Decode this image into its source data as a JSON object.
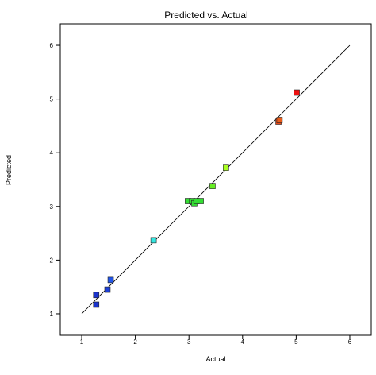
{
  "chart_data": {
    "type": "scatter",
    "title": "Predicted vs. Actual",
    "xlabel": "Actual",
    "ylabel": "Predicted",
    "xlim": [
      0.6,
      6.4
    ],
    "ylim": [
      0.6,
      6.4
    ],
    "x_ticks": [
      "1",
      "2",
      "3",
      "4",
      "5",
      "6"
    ],
    "y_ticks": [
      "1",
      "2",
      "3",
      "4",
      "5",
      "6"
    ],
    "grid": false,
    "legend": "none",
    "reference_line": {
      "x": [
        1,
        6
      ],
      "y": [
        1,
        6
      ],
      "color": "#000000"
    },
    "points": [
      {
        "x": 1.27,
        "y": 1.17,
        "color": "#1a33cc"
      },
      {
        "x": 1.27,
        "y": 1.35,
        "color": "#1a33cc"
      },
      {
        "x": 1.48,
        "y": 1.45,
        "color": "#1e40d8"
      },
      {
        "x": 1.54,
        "y": 1.63,
        "color": "#2255e8"
      },
      {
        "x": 2.34,
        "y": 2.37,
        "color": "#33e6e0"
      },
      {
        "x": 2.98,
        "y": 3.1,
        "color": "#33dd33"
      },
      {
        "x": 3.06,
        "y": 3.1,
        "color": "#33dd33"
      },
      {
        "x": 3.1,
        "y": 3.06,
        "color": "#33dd33"
      },
      {
        "x": 3.14,
        "y": 3.1,
        "color": "#33dd33"
      },
      {
        "x": 3.22,
        "y": 3.1,
        "color": "#33dd33"
      },
      {
        "x": 3.44,
        "y": 3.38,
        "color": "#66ee22"
      },
      {
        "x": 3.69,
        "y": 3.72,
        "color": "#aaff22"
      },
      {
        "x": 4.67,
        "y": 4.58,
        "color": "#e84818"
      },
      {
        "x": 4.69,
        "y": 4.61,
        "color": "#e85c18"
      },
      {
        "x": 5.01,
        "y": 5.12,
        "color": "#ee1111"
      }
    ]
  }
}
